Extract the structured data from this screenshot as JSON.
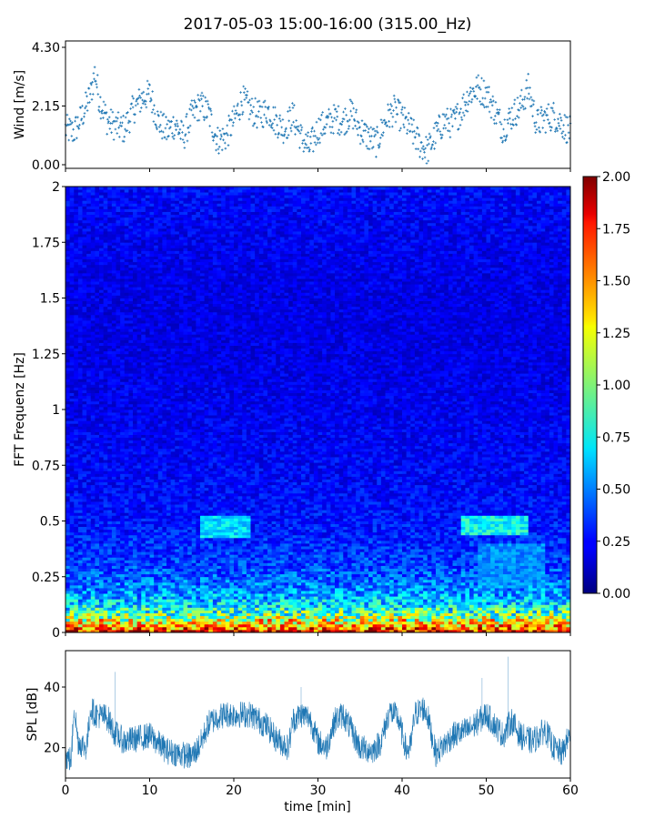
{
  "title": "2017-05-03 15:00-16:00 (315.00_Hz)",
  "chart_data": [
    {
      "type": "scatter",
      "panel": "wind",
      "ylabel": "Wind [m/s]",
      "xlim": [
        0,
        60
      ],
      "ylim": [
        0.0,
        4.3
      ],
      "yticks": [
        "0.00",
        "2.15",
        "4.30"
      ],
      "marker": "+",
      "color": "#1f77b4",
      "trend": {
        "x": [
          0,
          1,
          2,
          3,
          3.5,
          4,
          5,
          6,
          7,
          8,
          9,
          10,
          11,
          12,
          13,
          14,
          15,
          16,
          17,
          18,
          19,
          20,
          21,
          22,
          23,
          24,
          25,
          26,
          27,
          28,
          29,
          30,
          31,
          32,
          33,
          34,
          35,
          36,
          37,
          38,
          39,
          40,
          41,
          42,
          43,
          44,
          45,
          46,
          47,
          48,
          49,
          50,
          51,
          52,
          53,
          54,
          55,
          56,
          57,
          58,
          59,
          60
        ],
        "y": [
          1.3,
          1.2,
          1.8,
          2.6,
          3.4,
          2.4,
          1.6,
          1.4,
          1.3,
          2.0,
          2.4,
          2.6,
          1.6,
          1.2,
          1.5,
          1.0,
          1.8,
          2.2,
          1.9,
          0.9,
          1.0,
          1.6,
          2.4,
          2.0,
          1.8,
          2.0,
          1.6,
          1.3,
          1.8,
          1.0,
          0.6,
          1.3,
          1.5,
          1.7,
          1.6,
          1.9,
          1.3,
          1.0,
          0.8,
          1.6,
          2.0,
          1.7,
          1.3,
          0.8,
          0.5,
          1.1,
          1.6,
          1.5,
          2.0,
          2.6,
          2.8,
          2.6,
          2.0,
          1.3,
          1.8,
          2.1,
          2.8,
          1.5,
          1.7,
          1.8,
          1.5,
          1.2
        ]
      },
      "n_points": 900
    },
    {
      "type": "heatmap",
      "panel": "spectrogram",
      "ylabel": "FFT Frequenz [Hz]",
      "xlim": [
        0,
        60
      ],
      "ylim": [
        0,
        2
      ],
      "yticks": [
        "0",
        "0.25",
        "0.5",
        "0.75",
        "1",
        "1.25",
        "1.5",
        "1.75",
        "2"
      ],
      "colorbar": {
        "range": [
          0.0,
          2.0
        ],
        "ticks": [
          "0.00",
          "0.25",
          "0.50",
          "0.75",
          "1.00",
          "1.25",
          "1.50",
          "1.75",
          "2.00"
        ],
        "colormap": "jet"
      },
      "freq_profile": {
        "freq": [
          0.0,
          0.02,
          0.05,
          0.08,
          0.12,
          0.2,
          0.3,
          0.45,
          0.6,
          0.8,
          1.0,
          1.25,
          1.5,
          1.75,
          2.0
        ],
        "value": [
          1.9,
          1.55,
          1.25,
          0.95,
          0.7,
          0.5,
          0.38,
          0.3,
          0.26,
          0.24,
          0.22,
          0.2,
          0.2,
          0.22,
          0.26
        ]
      },
      "features": [
        {
          "t": [
            16,
            22
          ],
          "f": [
            0.42,
            0.52
          ],
          "value": 0.72
        },
        {
          "t": [
            47,
            55
          ],
          "f": [
            0.44,
            0.52
          ],
          "value": 0.8
        },
        {
          "t": [
            49,
            57
          ],
          "f": [
            0.2,
            0.4
          ],
          "value": 0.55
        }
      ]
    },
    {
      "type": "line",
      "panel": "spl",
      "ylabel": "SPL [dB]",
      "xlabel": "time [min]",
      "xlim": [
        0,
        60
      ],
      "ylim": [
        10,
        52
      ],
      "yticks": [
        "20",
        "40"
      ],
      "xticks": [
        "0",
        "10",
        "20",
        "30",
        "40",
        "50",
        "60"
      ],
      "color": "#1f77b4",
      "trend": {
        "x": [
          0,
          0.7,
          1,
          1.5,
          2.5,
          3.0,
          3.5,
          5.0,
          5.8,
          7,
          10,
          12,
          15,
          16,
          17,
          18,
          19,
          22,
          24,
          25,
          26.5,
          27,
          28,
          29,
          30,
          31,
          32,
          33,
          35,
          36.5,
          37.5,
          38.5,
          39.5,
          40.5,
          41,
          41.5,
          42.5,
          43,
          44,
          46,
          48,
          50,
          52,
          53,
          54,
          55.5,
          57,
          58,
          59,
          60
        ],
        "y": [
          17,
          16,
          34,
          22,
          20,
          33,
          31,
          30,
          25,
          22,
          24,
          19,
          17,
          21,
          28,
          30,
          31,
          31,
          27,
          23,
          20,
          29,
          31,
          30,
          22,
          20,
          29,
          31,
          20,
          19,
          22,
          32,
          30,
          19,
          20,
          31,
          33,
          31,
          18,
          24,
          26,
          31,
          24,
          29,
          24,
          22,
          26,
          20,
          18,
          25
        ]
      },
      "spikes": [
        {
          "x": 5.9,
          "y": 45
        },
        {
          "x": 28.0,
          "y": 40
        },
        {
          "x": 49.5,
          "y": 43
        },
        {
          "x": 52.6,
          "y": 50
        }
      ]
    }
  ]
}
